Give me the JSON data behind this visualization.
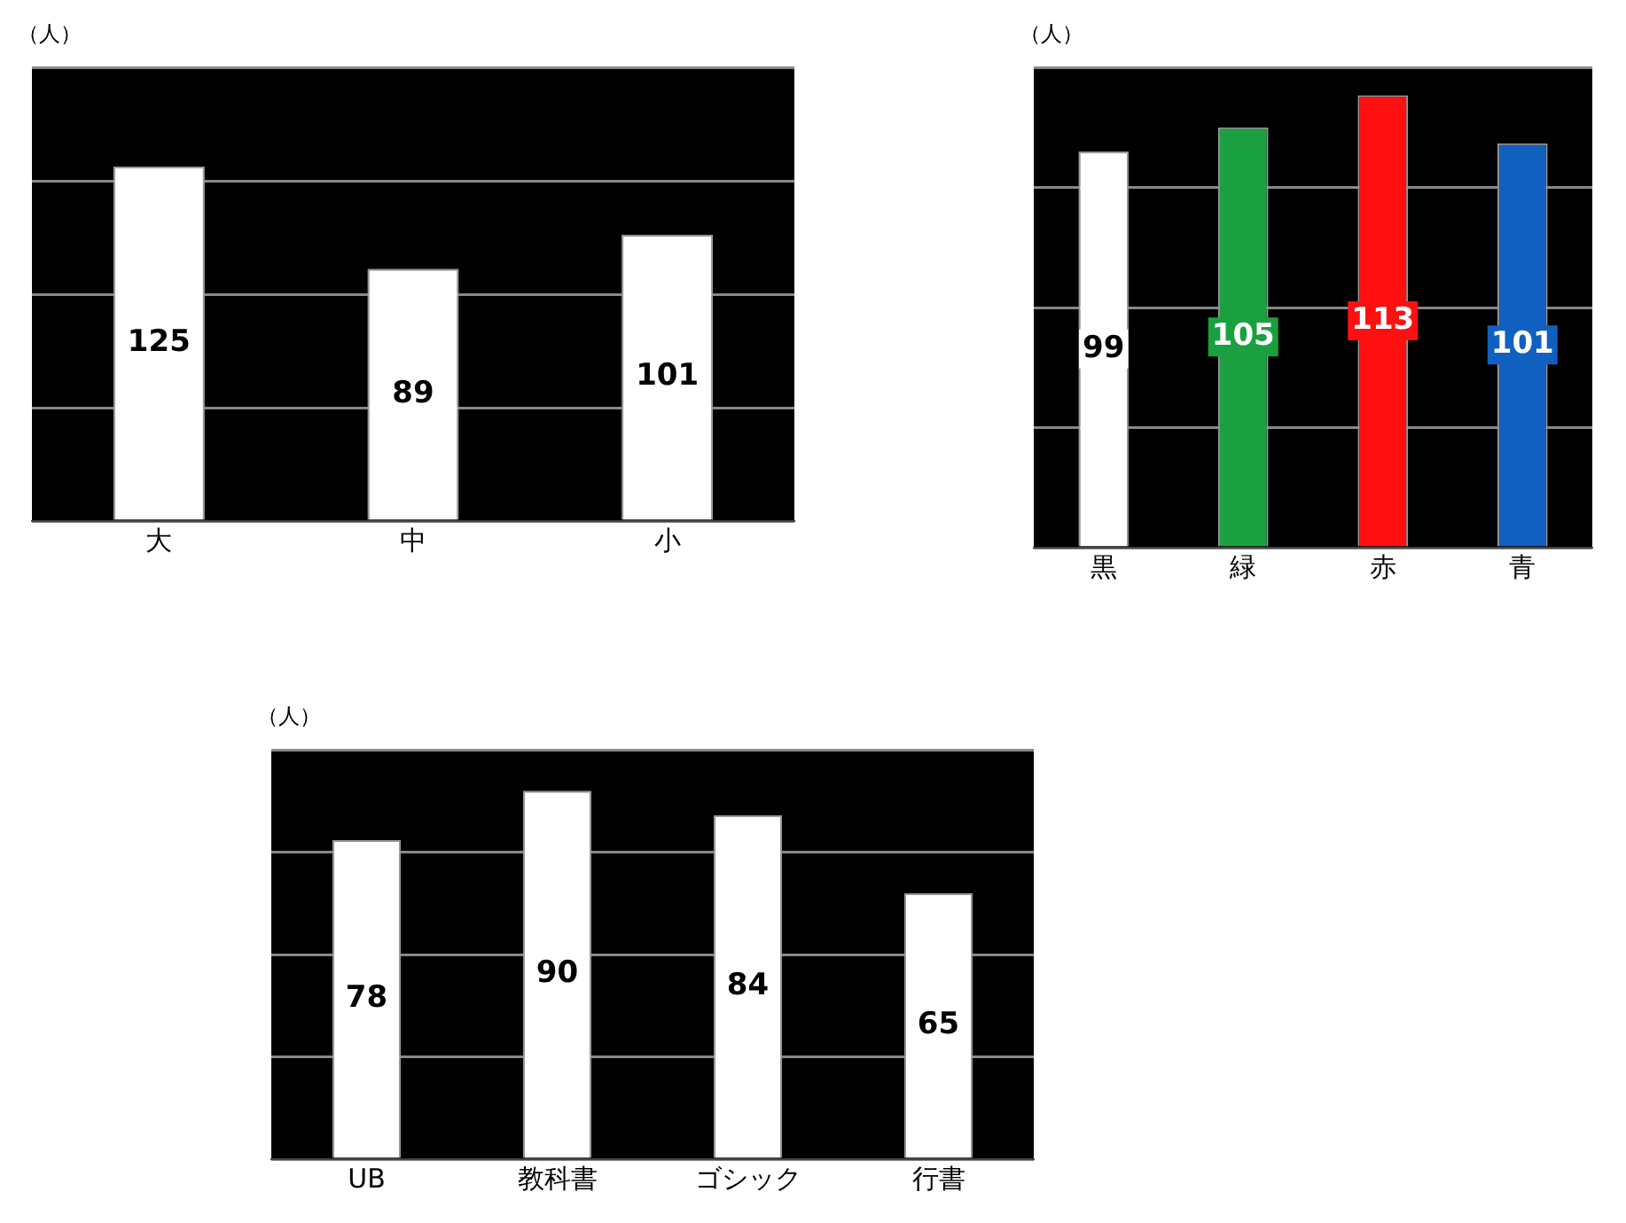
{
  "chart_data": [
    {
      "type": "bar",
      "ylabel": "（人）",
      "categories": [
        "大",
        "中",
        "小"
      ],
      "values": [
        125,
        89,
        101
      ],
      "colors": [
        "#ffffff",
        "#ffffff",
        "#ffffff"
      ],
      "data_labels": true,
      "ylim": [
        0,
        160
      ],
      "yticks": [
        {
          "value": 0,
          "label": null
        },
        {
          "value": 40,
          "label": null
        },
        {
          "value": 80,
          "label": null
        },
        {
          "value": 120,
          "label": null
        },
        {
          "value": 160,
          "label": null
        }
      ],
      "grid": "y",
      "tick_labels": "x"
    },
    {
      "type": "bar",
      "ylabel": "（人）",
      "categories": [
        "黒",
        "緑",
        "赤",
        "青"
      ],
      "values": [
        99,
        105,
        113,
        101
      ],
      "colors": [
        "#ffffff",
        "#1aa040",
        "#ff1010",
        "#1060c0"
      ],
      "data_labels": true,
      "ylim": [
        0,
        120
      ],
      "yticks": [
        {
          "value": 0,
          "label": null
        },
        {
          "value": 30,
          "label": null
        },
        {
          "value": 60,
          "label": null
        },
        {
          "value": 90,
          "label": null
        },
        {
          "value": 120,
          "label": null
        }
      ],
      "grid": "y",
      "tick_labels": "x"
    },
    {
      "type": "bar",
      "ylabel": "（人）",
      "categories": [
        "UB",
        "教科書",
        "ゴシック",
        "行書"
      ],
      "values": [
        78,
        90,
        84,
        65
      ],
      "colors": [
        "#ffffff",
        "#ffffff",
        "#ffffff",
        "#ffffff"
      ],
      "data_labels": true,
      "ylim": [
        0,
        100
      ],
      "yticks": [
        {
          "value": 0,
          "label": null
        },
        {
          "value": 25,
          "label": null
        },
        {
          "value": 50,
          "label": null
        },
        {
          "value": 75,
          "label": null
        },
        {
          "value": 100,
          "label": null
        }
      ],
      "grid": "y",
      "tick_labels": "x"
    }
  ]
}
